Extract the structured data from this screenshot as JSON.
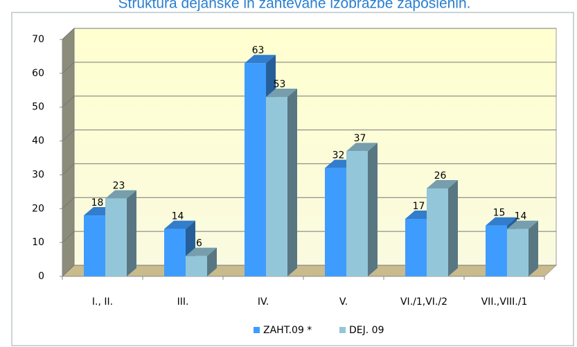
{
  "chart_data": {
    "type": "bar3d",
    "title": "Struktura dejanske in zahtevane izobrazbe zaposlenih.",
    "categories": [
      "I., II.",
      "III.",
      "IV.",
      "V.",
      "VI./1,VI./2",
      "VII.,VIII./1"
    ],
    "series": [
      {
        "name": "ZAHT.09 *",
        "color": "#3f9cff",
        "values": [
          18,
          14,
          63,
          32,
          17,
          15
        ]
      },
      {
        "name": "DEJ. 09",
        "color": "#93c6d8",
        "values": [
          23,
          6,
          53,
          37,
          26,
          14
        ]
      }
    ],
    "ylim": [
      0,
      70
    ],
    "yticks": [
      0,
      10,
      20,
      30,
      40,
      50,
      60,
      70
    ],
    "grid": true,
    "legend": "bottom"
  }
}
